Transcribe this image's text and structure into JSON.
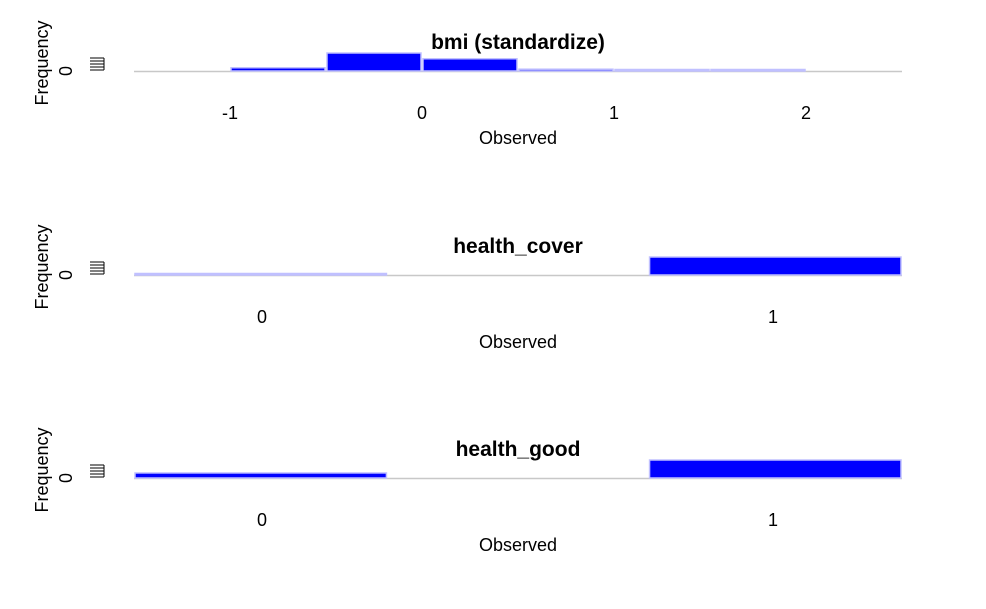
{
  "colors": {
    "bar_fill": "#0000ff",
    "bar_edge": "#c0c0ff",
    "axis": "#c8c8c8"
  },
  "chart_data": [
    {
      "type": "bar",
      "title": "bmi (standardize)",
      "xlabel": "Observed",
      "ylabel": "Frequency",
      "y_tick_label": "0",
      "xlim": [
        -1.5,
        2.5
      ],
      "x_ticks": [
        "-1",
        "0",
        "1",
        "2"
      ],
      "ylim": [
        0,
        1
      ],
      "bins": [
        {
          "from": -1.0,
          "to": -0.5,
          "value": 0.18
        },
        {
          "from": -0.5,
          "to": 0.0,
          "value": 1.0
        },
        {
          "from": 0.0,
          "to": 0.5,
          "value": 0.68
        },
        {
          "from": 0.5,
          "to": 1.0,
          "value": 0.1
        },
        {
          "from": 1.0,
          "to": 1.5,
          "value": 0.02
        },
        {
          "from": 1.5,
          "to": 2.0,
          "value": 0.01
        }
      ],
      "grid": false,
      "legend": "none"
    },
    {
      "type": "bar",
      "title": "health_cover",
      "xlabel": "Observed",
      "ylabel": "Frequency",
      "y_tick_label": "0",
      "categories": [
        "0",
        "1"
      ],
      "values": [
        0.08,
        1.0
      ],
      "ylim": [
        0,
        1
      ],
      "grid": false,
      "legend": "none"
    },
    {
      "type": "bar",
      "title": "health_good",
      "xlabel": "Observed",
      "ylabel": "Frequency",
      "y_tick_label": "0",
      "categories": [
        "0",
        "1"
      ],
      "values": [
        0.28,
        1.0
      ],
      "ylim": [
        0,
        1
      ],
      "grid": false,
      "legend": "none"
    }
  ]
}
